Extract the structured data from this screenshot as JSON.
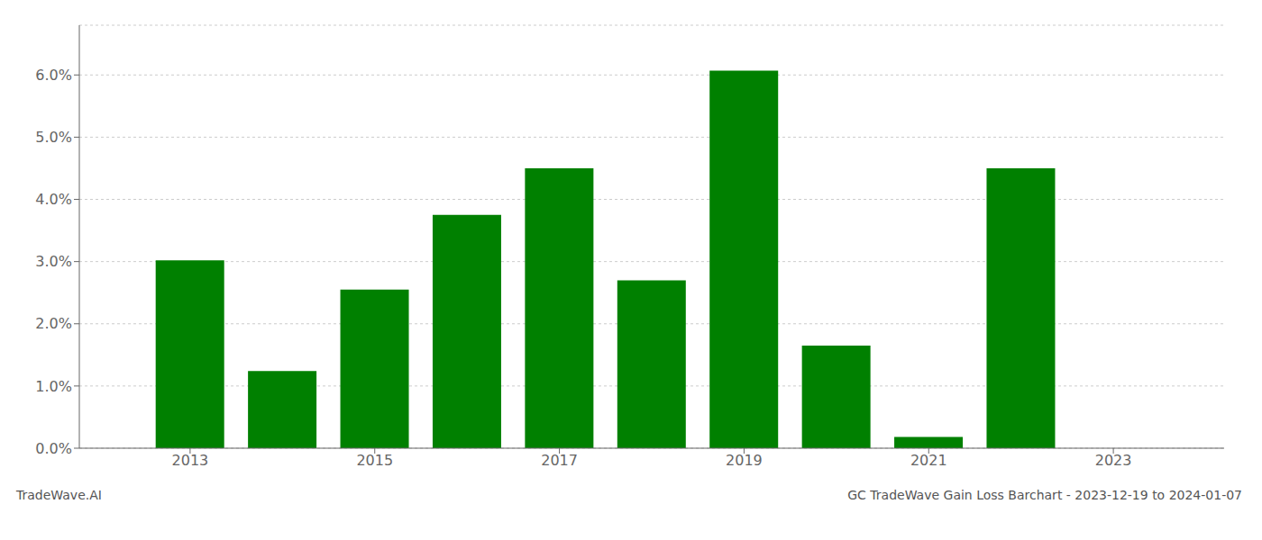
{
  "chart_data": {
    "type": "bar",
    "x": [
      2013,
      2014,
      2015,
      2016,
      2017,
      2018,
      2019,
      2020,
      2021,
      2022
    ],
    "values": [
      0.0302,
      0.0124,
      0.0255,
      0.0375,
      0.045,
      0.027,
      0.0607,
      0.0165,
      0.0018,
      0.045
    ],
    "color": "#008000",
    "xlim": [
      2011.8,
      2024.2
    ],
    "xticks": [
      2013,
      2015,
      2017,
      2019,
      2021,
      2023
    ],
    "ylim": [
      0,
      0.068
    ],
    "yticks": [
      {
        "value": 0.0,
        "label": "0.0%"
      },
      {
        "value": 0.01,
        "label": "1.0%"
      },
      {
        "value": 0.02,
        "label": "2.0%"
      },
      {
        "value": 0.03,
        "label": "3.0%"
      },
      {
        "value": 0.04,
        "label": "4.0%"
      },
      {
        "value": 0.05,
        "label": "5.0%"
      },
      {
        "value": 0.06,
        "label": "6.0%"
      }
    ],
    "grid": true,
    "annotations": [
      "TradeWave.AI",
      "GC TradeWave Gain Loss Barchart - 2023-12-19 to 2024-01-07"
    ]
  }
}
